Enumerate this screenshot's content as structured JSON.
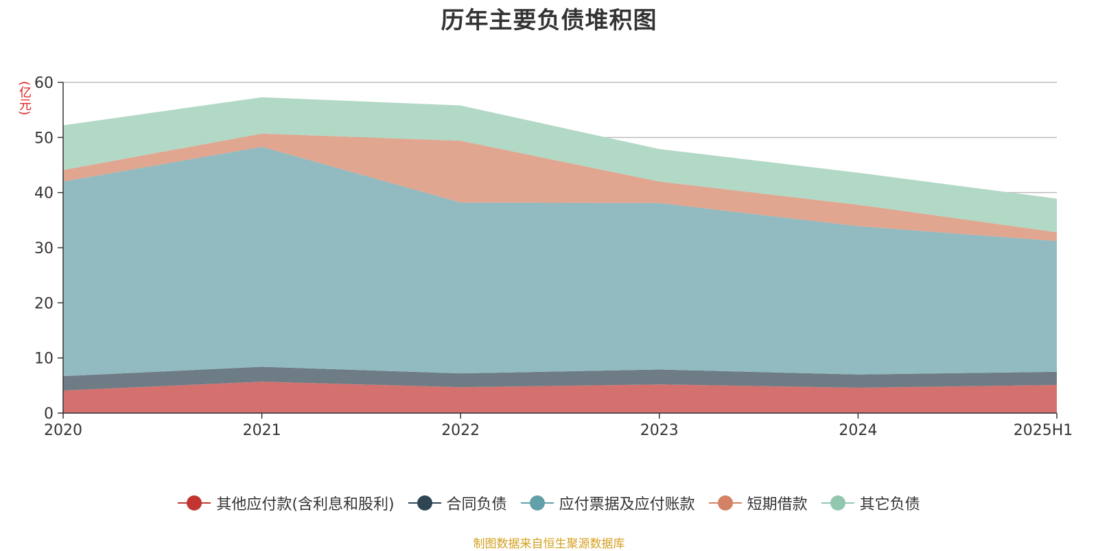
{
  "title": "历年主要负债堆积图",
  "unit_label": "(亿元)",
  "source_note": "制图数据来自恒生聚源数据库",
  "chart_data": {
    "type": "area",
    "stacked": true,
    "categories": [
      "2020",
      "2021",
      "2022",
      "2023",
      "2024",
      "2025H1"
    ],
    "ylim": [
      0,
      60
    ],
    "yticks": [
      0,
      10,
      20,
      30,
      40,
      50,
      60
    ],
    "grid": true,
    "legend_position": "bottom",
    "series": [
      {
        "name": "其他应付款(含利息和股利)",
        "color": "#c23531",
        "fill": "#d4716f",
        "values": [
          4.1,
          5.7,
          4.7,
          5.2,
          4.6,
          5.1
        ]
      },
      {
        "name": "合同负债",
        "color": "#2f4554",
        "fill": "#6e7c86",
        "values": [
          2.6,
          2.7,
          2.5,
          2.7,
          2.4,
          2.4
        ]
      },
      {
        "name": "应付票据及应付账款",
        "color": "#61a0a8",
        "fill": "#91bac1",
        "values": [
          35.3,
          39.9,
          31.0,
          30.2,
          26.9,
          23.7
        ]
      },
      {
        "name": "短期借款",
        "color": "#d48265",
        "fill": "#e0a690",
        "values": [
          2.1,
          2.4,
          11.2,
          3.9,
          3.9,
          1.6
        ]
      },
      {
        "name": "其它负债",
        "color": "#91c7ae",
        "fill": "#b2d8c6",
        "values": [
          8.1,
          6.6,
          6.4,
          5.9,
          5.8,
          6.1
        ]
      }
    ]
  }
}
